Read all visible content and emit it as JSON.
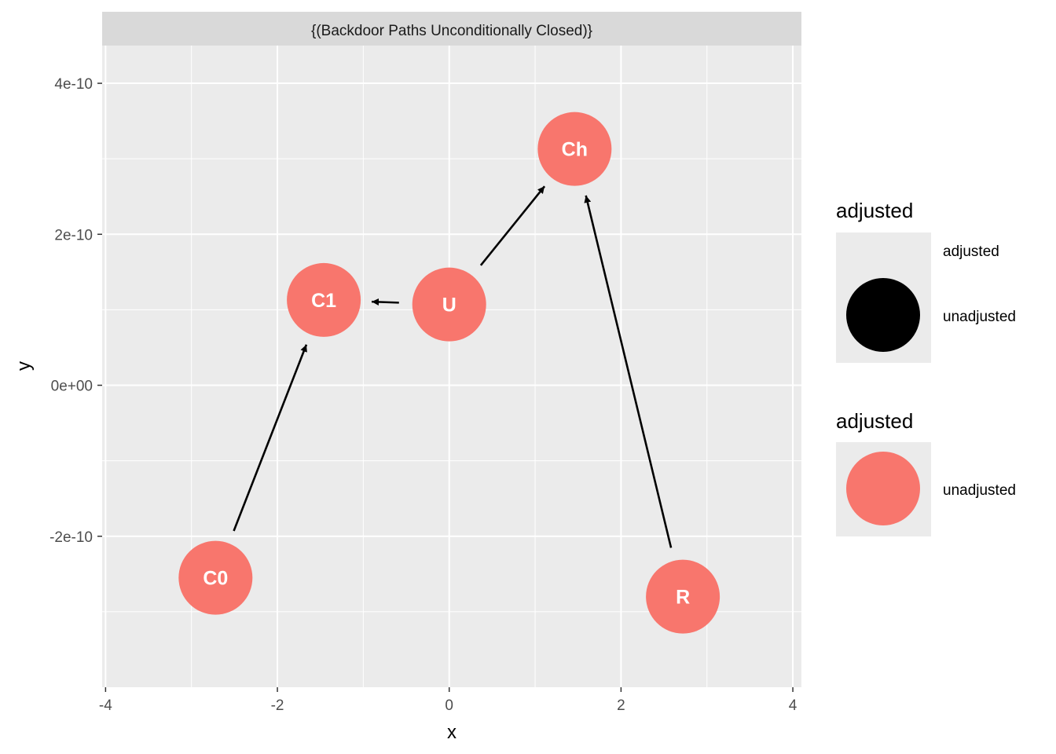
{
  "chart_data": {
    "type": "scatter",
    "title": "",
    "facet_label": "{(Backdoor Paths Unconditionally Closed)}",
    "xlabel": "x",
    "ylabel": "y",
    "xlim": [
      -4.04,
      4.1
    ],
    "ylim": [
      -4e-10,
      4.5e-10
    ],
    "x_ticks": [
      {
        "value": -4,
        "label": "-4"
      },
      {
        "value": -2,
        "label": "-2"
      },
      {
        "value": 0,
        "label": "0"
      },
      {
        "value": 2,
        "label": "2"
      },
      {
        "value": 4,
        "label": "4"
      }
    ],
    "x_minor": [
      -3,
      -1,
      1,
      3
    ],
    "y_ticks": [
      {
        "value": 4e-10,
        "label": "4e-10"
      },
      {
        "value": 2e-10,
        "label": "2e-10"
      },
      {
        "value": 0,
        "label": "0e+00"
      },
      {
        "value": -2e-10,
        "label": "-2e-10"
      }
    ],
    "y_minor": [
      3e-10,
      1e-10,
      -1e-10,
      -3e-10
    ],
    "grid": true,
    "nodes": [
      {
        "name": "C0",
        "x": -2.72,
        "y": -2.55e-10,
        "status": "unadjusted"
      },
      {
        "name": "C1",
        "x": -1.46,
        "y": 1.13e-10,
        "status": "unadjusted"
      },
      {
        "name": "U",
        "x": 0.0,
        "y": 1.07e-10,
        "status": "unadjusted"
      },
      {
        "name": "Ch",
        "x": 1.46,
        "y": 3.13e-10,
        "status": "unadjusted"
      },
      {
        "name": "R",
        "x": 2.72,
        "y": -2.8e-10,
        "status": "unadjusted"
      }
    ],
    "edges": [
      {
        "from": "C0",
        "to": "C1"
      },
      {
        "from": "U",
        "to": "C1"
      },
      {
        "from": "U",
        "to": "Ch"
      },
      {
        "from": "R",
        "to": "Ch"
      }
    ],
    "legends": [
      {
        "title": "adjusted",
        "entries": [
          {
            "label": "adjusted",
            "color": ""
          },
          {
            "label": "unadjusted",
            "color": "#000000"
          }
        ]
      },
      {
        "title": "adjusted",
        "entries": [
          {
            "label": "unadjusted",
            "color": "#F8766D"
          }
        ]
      }
    ],
    "colors": {
      "panel": "#EBEBEB",
      "strip": "#D9D9D9",
      "grid": "#FFFFFF",
      "node": "#F8766D",
      "edge": "#000000"
    }
  }
}
